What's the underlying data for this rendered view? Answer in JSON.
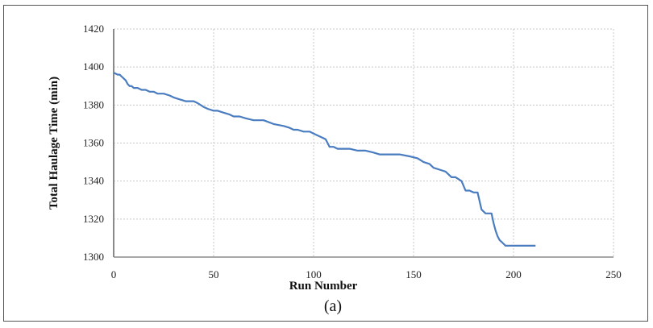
{
  "chart_data": {
    "type": "line",
    "caption": "(a)",
    "xlabel": "Run Number",
    "ylabel": "Total Haulage Time (min)",
    "xlim": [
      0,
      250
    ],
    "ylim": [
      1300,
      1420
    ],
    "xticks": [
      0,
      50,
      100,
      150,
      200,
      250
    ],
    "yticks": [
      1300,
      1320,
      1340,
      1360,
      1380,
      1400,
      1420
    ],
    "grid": true,
    "grid_style": "dotted",
    "line_color": "#4a7cc0",
    "series": [
      {
        "x": [
          0,
          2,
          3,
          4,
          5,
          6,
          7,
          8,
          9,
          10,
          12,
          14,
          16,
          18,
          20,
          22,
          25,
          28,
          30,
          33,
          36,
          40,
          42,
          45,
          47,
          50,
          52,
          55,
          58,
          60,
          63,
          66,
          70,
          75,
          80,
          85,
          88,
          90,
          92,
          95,
          98,
          100,
          102,
          104,
          106,
          108,
          110,
          112,
          115,
          118,
          122,
          126,
          130,
          133,
          136,
          140,
          143,
          148,
          152,
          155,
          158,
          160,
          163,
          166,
          169,
          171,
          174,
          176,
          178,
          180,
          182,
          184,
          185,
          186,
          188,
          189,
          190,
          191,
          192,
          193,
          194,
          195,
          196,
          198,
          200,
          205,
          211
        ],
        "y": [
          1397,
          1396,
          1396,
          1395,
          1394,
          1393,
          1391,
          1390,
          1390,
          1389,
          1389,
          1388,
          1388,
          1387,
          1387,
          1386,
          1386,
          1385,
          1384,
          1383,
          1382,
          1382,
          1381,
          1379,
          1378,
          1377,
          1377,
          1376,
          1375,
          1374,
          1374,
          1373,
          1372,
          1372,
          1370,
          1369,
          1368,
          1367,
          1367,
          1366,
          1366,
          1365,
          1364,
          1363,
          1362,
          1358,
          1358,
          1357,
          1357,
          1357,
          1356,
          1356,
          1355,
          1354,
          1354,
          1354,
          1354,
          1353,
          1352,
          1350,
          1349,
          1347,
          1346,
          1345,
          1342,
          1342,
          1340,
          1335,
          1335,
          1334,
          1334,
          1325,
          1324,
          1323,
          1323,
          1323,
          1318,
          1314,
          1311,
          1309,
          1308,
          1307,
          1306,
          1306,
          1306,
          1306,
          1306
        ]
      }
    ]
  }
}
